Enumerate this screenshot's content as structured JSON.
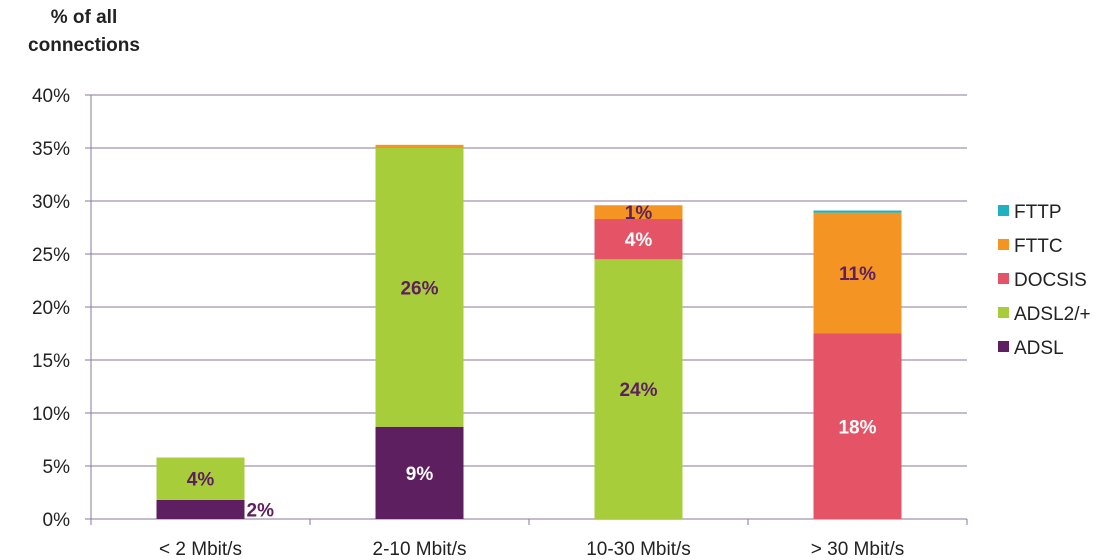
{
  "chart_data": {
    "type": "bar",
    "stacked": true,
    "title": "",
    "ylabel_lines": [
      "% of all",
      "connections"
    ],
    "xlabel": "",
    "categories": [
      "< 2 Mbit/s",
      "2-10 Mbit/s",
      "10-30 Mbit/s",
      "> 30 Mbit/s"
    ],
    "ylim": [
      0,
      40
    ],
    "yticks": [
      "0%",
      "5%",
      "10%",
      "15%",
      "20%",
      "25%",
      "30%",
      "35%",
      "40%"
    ],
    "grid": true,
    "legend_position": "right",
    "series": [
      {
        "name": "ADSL",
        "color": "#5e1f60",
        "label_color": "#ffffff",
        "values": [
          1.8,
          8.7,
          0,
          0
        ]
      },
      {
        "name": "ADSL2/+",
        "color": "#a8cd3a",
        "label_color": "#5e1f60",
        "values": [
          4.0,
          26.3,
          24.5,
          0
        ]
      },
      {
        "name": "DOCSIS",
        "color": "#e45466",
        "label_color": "#ffffff",
        "values": [
          0,
          0,
          3.8,
          17.5
        ]
      },
      {
        "name": "FTTC",
        "color": "#f39423",
        "label_color": "#5e1f60",
        "values": [
          0,
          0.3,
          1.3,
          11.4
        ]
      },
      {
        "name": "FTTP",
        "color": "#1fb1c0",
        "label_color": "#ffffff",
        "values": [
          0,
          0,
          0,
          0.2
        ]
      }
    ],
    "data_labels": [
      {
        "category": "< 2 Mbit/s",
        "series": "ADSL",
        "text": "2%",
        "placement": "outside-right",
        "color": "#5e1f60"
      },
      {
        "category": "< 2 Mbit/s",
        "series": "ADSL2/+",
        "text": "4%",
        "placement": "inside",
        "color": "#5e1f60"
      },
      {
        "category": "2-10 Mbit/s",
        "series": "ADSL",
        "text": "9%",
        "placement": "inside",
        "color": "#ffffff"
      },
      {
        "category": "2-10 Mbit/s",
        "series": "ADSL2/+",
        "text": "26%",
        "placement": "inside",
        "color": "#5e1f60"
      },
      {
        "category": "10-30 Mbit/s",
        "series": "ADSL2/+",
        "text": "24%",
        "placement": "inside",
        "color": "#5e1f60"
      },
      {
        "category": "10-30 Mbit/s",
        "series": "DOCSIS",
        "text": "4%",
        "placement": "inside",
        "color": "#ffffff"
      },
      {
        "category": "10-30 Mbit/s",
        "series": "FTTC",
        "text": "1%",
        "placement": "inside",
        "color": "#5e1f60"
      },
      {
        "category": "> 30 Mbit/s",
        "series": "DOCSIS",
        "text": "18%",
        "placement": "inside",
        "color": "#ffffff"
      },
      {
        "category": "> 30 Mbit/s",
        "series": "FTTC",
        "text": "11%",
        "placement": "inside",
        "color": "#5e1f60"
      }
    ],
    "legend_order": [
      "FTTP",
      "FTTC",
      "DOCSIS",
      "ADSL2/+",
      "ADSL"
    ]
  }
}
